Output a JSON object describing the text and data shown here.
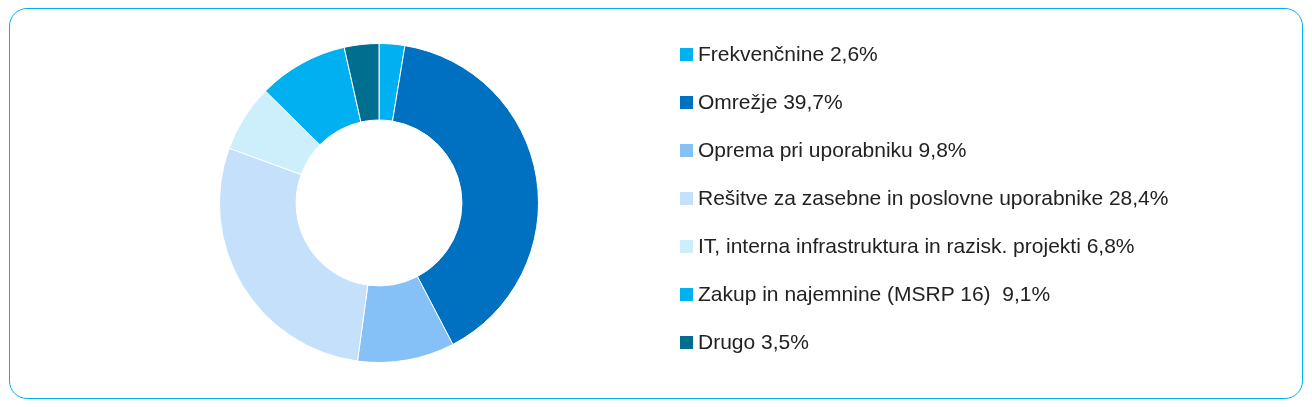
{
  "chart_data": {
    "type": "donut",
    "categories": [
      "Frekvenčnine 2,6%",
      "Omrežje 39,7%",
      "Oprema pri uporabniku 9,8%",
      "Rešitve za zasebne in poslovne uporabnike 28,4%",
      "IT, interna infrastruktura in razisk. projekti 6,8%",
      "Zakup in najemnine (MSRP 16)  9,1%",
      "Drugo 3,5%"
    ],
    "values": [
      2.6,
      39.7,
      9.8,
      28.4,
      6.8,
      9.1,
      3.5
    ],
    "colors": [
      "#00b0f0",
      "#0070c0",
      "#85c1f7",
      "#c5e0fb",
      "#cdeffc",
      "#00b0f0",
      "#006e8f"
    ],
    "legend": "right"
  }
}
